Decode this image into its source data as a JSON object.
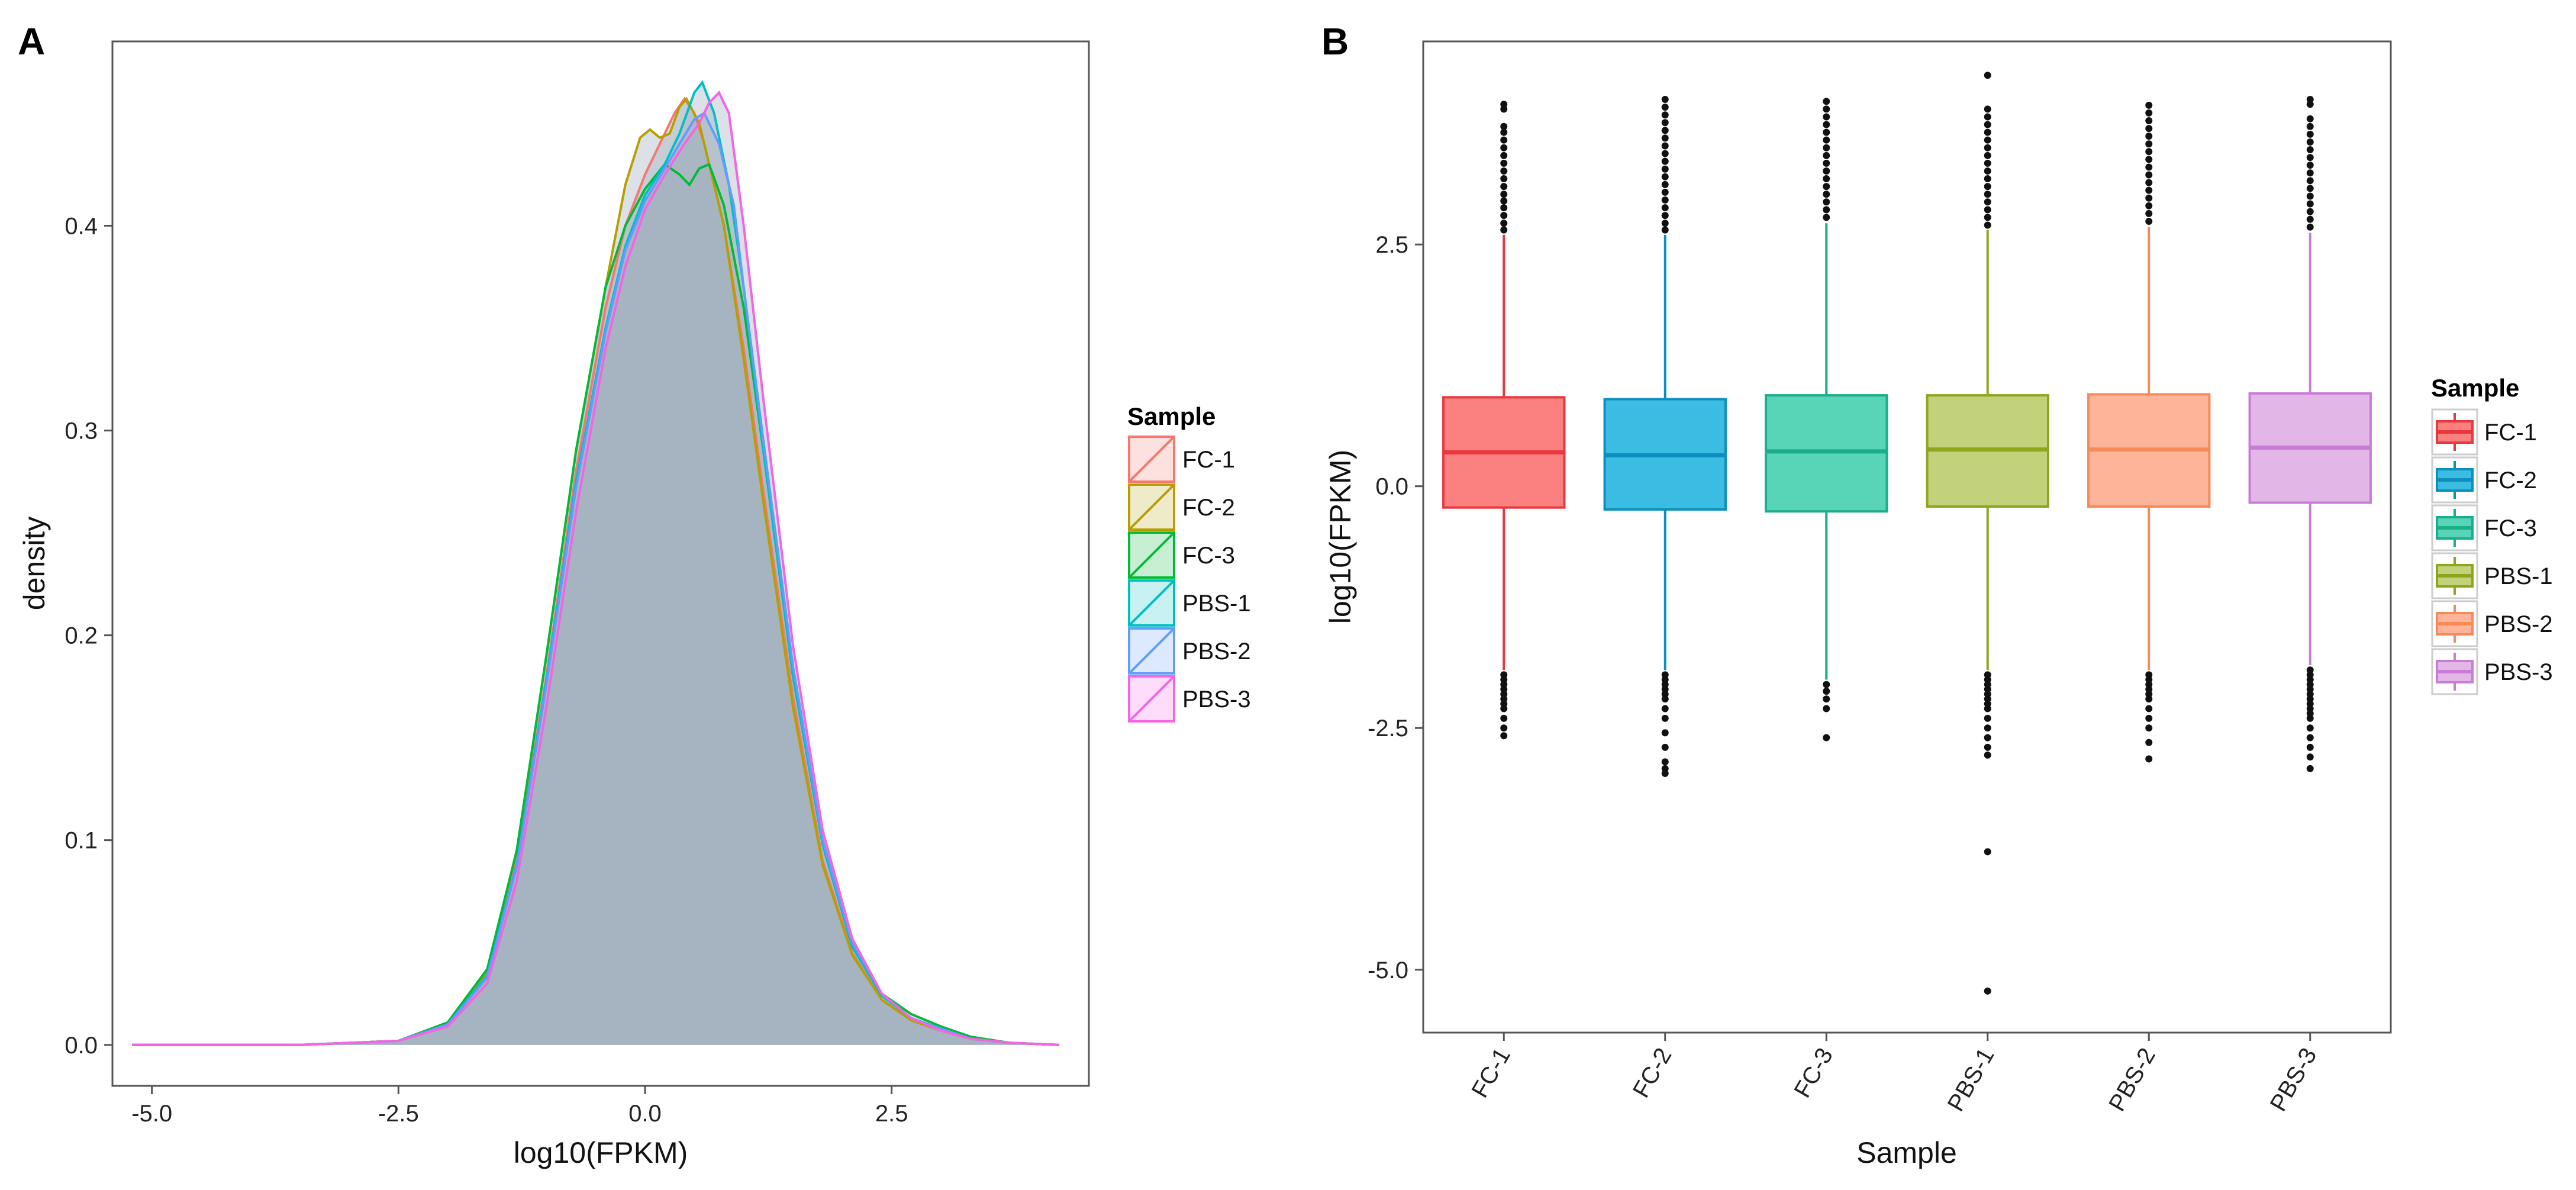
{
  "panel_a_label": "A",
  "panel_b_label": "B",
  "chart_data": [
    {
      "type": "area",
      "panel": "A",
      "title": "",
      "xlabel": "log10(FPKM)",
      "ylabel": "density",
      "xlim": [
        -5.4,
        4.5
      ],
      "ylim": [
        -0.02,
        0.49
      ],
      "xticks": [
        -5.0,
        -2.5,
        0.0,
        2.5
      ],
      "xtick_labels": [
        "-5.0",
        "-2.5",
        "0.0",
        "2.5"
      ],
      "yticks": [
        0.0,
        0.1,
        0.2,
        0.3,
        0.4
      ],
      "ytick_labels": [
        "0.0",
        "0.1",
        "0.2",
        "0.3",
        "0.4"
      ],
      "legend_title": "Sample",
      "legend_position": "right",
      "overlap_fill": "#a0afbd",
      "series": [
        {
          "name": "FC-1",
          "color": "#f8766d",
          "points": [
            [
              -5.2,
              0
            ],
            [
              -3.5,
              0
            ],
            [
              -2.5,
              0.002
            ],
            [
              -2.0,
              0.01
            ],
            [
              -1.6,
              0.035
            ],
            [
              -1.3,
              0.09
            ],
            [
              -1.0,
              0.18
            ],
            [
              -0.7,
              0.28
            ],
            [
              -0.4,
              0.36
            ],
            [
              -0.2,
              0.4
            ],
            [
              0.0,
              0.425
            ],
            [
              0.15,
              0.44
            ],
            [
              0.3,
              0.455
            ],
            [
              0.4,
              0.462
            ],
            [
              0.5,
              0.455
            ],
            [
              0.6,
              0.44
            ],
            [
              0.8,
              0.4
            ],
            [
              1.0,
              0.34
            ],
            [
              1.2,
              0.27
            ],
            [
              1.5,
              0.17
            ],
            [
              1.8,
              0.09
            ],
            [
              2.1,
              0.045
            ],
            [
              2.4,
              0.022
            ],
            [
              2.7,
              0.012
            ],
            [
              3.0,
              0.007
            ],
            [
              3.3,
              0.003
            ],
            [
              3.7,
              0.001
            ],
            [
              4.2,
              0
            ]
          ]
        },
        {
          "name": "FC-2",
          "color": "#b79f00",
          "points": [
            [
              -5.2,
              0
            ],
            [
              -3.5,
              0
            ],
            [
              -2.5,
              0.002
            ],
            [
              -2.0,
              0.01
            ],
            [
              -1.6,
              0.036
            ],
            [
              -1.3,
              0.095
            ],
            [
              -1.0,
              0.19
            ],
            [
              -0.7,
              0.29
            ],
            [
              -0.4,
              0.37
            ],
            [
              -0.2,
              0.42
            ],
            [
              -0.05,
              0.443
            ],
            [
              0.05,
              0.447
            ],
            [
              0.15,
              0.443
            ],
            [
              0.25,
              0.445
            ],
            [
              0.35,
              0.458
            ],
            [
              0.42,
              0.462
            ],
            [
              0.55,
              0.45
            ],
            [
              0.8,
              0.4
            ],
            [
              1.0,
              0.335
            ],
            [
              1.2,
              0.265
            ],
            [
              1.5,
              0.165
            ],
            [
              1.8,
              0.088
            ],
            [
              2.1,
              0.044
            ],
            [
              2.4,
              0.022
            ],
            [
              2.7,
              0.012
            ],
            [
              3.0,
              0.007
            ],
            [
              3.3,
              0.003
            ],
            [
              3.7,
              0.001
            ],
            [
              4.2,
              0
            ]
          ]
        },
        {
          "name": "FC-3",
          "color": "#00ba38",
          "points": [
            [
              -5.2,
              0
            ],
            [
              -3.5,
              0
            ],
            [
              -2.5,
              0.002
            ],
            [
              -2.0,
              0.011
            ],
            [
              -1.6,
              0.037
            ],
            [
              -1.3,
              0.095
            ],
            [
              -1.0,
              0.19
            ],
            [
              -0.7,
              0.29
            ],
            [
              -0.4,
              0.37
            ],
            [
              -0.2,
              0.4
            ],
            [
              0.0,
              0.418
            ],
            [
              0.2,
              0.43
            ],
            [
              0.35,
              0.425
            ],
            [
              0.45,
              0.42
            ],
            [
              0.55,
              0.428
            ],
            [
              0.65,
              0.43
            ],
            [
              0.8,
              0.41
            ],
            [
              1.0,
              0.36
            ],
            [
              1.2,
              0.29
            ],
            [
              1.5,
              0.18
            ],
            [
              1.8,
              0.1
            ],
            [
              2.1,
              0.05
            ],
            [
              2.4,
              0.025
            ],
            [
              2.7,
              0.015
            ],
            [
              3.0,
              0.009
            ],
            [
              3.3,
              0.004
            ],
            [
              3.7,
              0.001
            ],
            [
              4.2,
              0
            ]
          ]
        },
        {
          "name": "PBS-1",
          "color": "#00bfc4",
          "points": [
            [
              -5.2,
              0
            ],
            [
              -3.5,
              0
            ],
            [
              -2.5,
              0.002
            ],
            [
              -2.0,
              0.01
            ],
            [
              -1.6,
              0.034
            ],
            [
              -1.3,
              0.088
            ],
            [
              -1.0,
              0.178
            ],
            [
              -0.7,
              0.275
            ],
            [
              -0.4,
              0.35
            ],
            [
              -0.2,
              0.39
            ],
            [
              0.0,
              0.415
            ],
            [
              0.2,
              0.43
            ],
            [
              0.35,
              0.445
            ],
            [
              0.5,
              0.465
            ],
            [
              0.58,
              0.47
            ],
            [
              0.7,
              0.455
            ],
            [
              0.85,
              0.42
            ],
            [
              1.0,
              0.37
            ],
            [
              1.2,
              0.29
            ],
            [
              1.5,
              0.18
            ],
            [
              1.8,
              0.098
            ],
            [
              2.1,
              0.048
            ],
            [
              2.4,
              0.024
            ],
            [
              2.7,
              0.013
            ],
            [
              3.0,
              0.008
            ],
            [
              3.3,
              0.003
            ],
            [
              3.7,
              0.001
            ],
            [
              4.2,
              0
            ]
          ]
        },
        {
          "name": "PBS-2",
          "color": "#619cff",
          "points": [
            [
              -5.2,
              0
            ],
            [
              -3.5,
              0
            ],
            [
              -2.5,
              0.002
            ],
            [
              -2.0,
              0.01
            ],
            [
              -1.6,
              0.033
            ],
            [
              -1.3,
              0.087
            ],
            [
              -1.0,
              0.176
            ],
            [
              -0.7,
              0.272
            ],
            [
              -0.4,
              0.348
            ],
            [
              -0.2,
              0.388
            ],
            [
              0.0,
              0.412
            ],
            [
              0.2,
              0.428
            ],
            [
              0.35,
              0.44
            ],
            [
              0.5,
              0.452
            ],
            [
              0.6,
              0.455
            ],
            [
              0.75,
              0.44
            ],
            [
              0.9,
              0.41
            ],
            [
              1.0,
              0.37
            ],
            [
              1.2,
              0.295
            ],
            [
              1.5,
              0.185
            ],
            [
              1.8,
              0.1
            ],
            [
              2.1,
              0.05
            ],
            [
              2.4,
              0.025
            ],
            [
              2.7,
              0.013
            ],
            [
              3.0,
              0.008
            ],
            [
              3.3,
              0.003
            ],
            [
              3.7,
              0.001
            ],
            [
              4.2,
              0
            ]
          ]
        },
        {
          "name": "PBS-3",
          "color": "#f564e3",
          "points": [
            [
              -5.2,
              0
            ],
            [
              -3.5,
              0
            ],
            [
              -2.5,
              0.002
            ],
            [
              -2.0,
              0.009
            ],
            [
              -1.6,
              0.03
            ],
            [
              -1.3,
              0.08
            ],
            [
              -1.0,
              0.165
            ],
            [
              -0.7,
              0.26
            ],
            [
              -0.4,
              0.34
            ],
            [
              -0.2,
              0.38
            ],
            [
              0.0,
              0.408
            ],
            [
              0.2,
              0.425
            ],
            [
              0.4,
              0.44
            ],
            [
              0.55,
              0.45
            ],
            [
              0.65,
              0.46
            ],
            [
              0.75,
              0.465
            ],
            [
              0.85,
              0.455
            ],
            [
              1.0,
              0.4
            ],
            [
              1.2,
              0.315
            ],
            [
              1.5,
              0.195
            ],
            [
              1.8,
              0.105
            ],
            [
              2.1,
              0.052
            ],
            [
              2.4,
              0.025
            ],
            [
              2.7,
              0.013
            ],
            [
              3.0,
              0.007
            ],
            [
              3.3,
              0.003
            ],
            [
              3.7,
              0.001
            ],
            [
              4.2,
              0
            ]
          ]
        }
      ]
    },
    {
      "type": "box",
      "panel": "B",
      "title": "",
      "xlabel": "Sample",
      "ylabel": "log10(FPKM)",
      "ylim": [
        -5.65,
        4.6
      ],
      "yticks": [
        -5.0,
        -2.5,
        0.0,
        2.5
      ],
      "ytick_labels": [
        "-5.0",
        "-2.5",
        "0.0",
        "2.5"
      ],
      "categories": [
        "FC-1",
        "FC-2",
        "FC-3",
        "PBS-1",
        "PBS-2",
        "PBS-3"
      ],
      "legend_title": "Sample",
      "legend_position": "right",
      "series": [
        {
          "name": "FC-1",
          "color": "#e8383d",
          "fill": "#fb8080",
          "q1": -0.22,
          "median": 0.35,
          "q3": 0.92,
          "whisker_low": -1.9,
          "whisker_high": 2.6,
          "outliers_low": [
            -1.95,
            -2.0,
            -2.05,
            -2.1,
            -2.15,
            -2.2,
            -2.25,
            -2.3,
            -2.4,
            -2.5,
            -2.58
          ],
          "outliers_high": [
            2.65,
            2.72,
            2.8,
            2.88,
            2.95,
            3.02,
            3.1,
            3.18,
            3.26,
            3.34,
            3.42,
            3.5,
            3.58,
            3.66,
            3.72,
            3.9,
            3.95
          ]
        },
        {
          "name": "FC-2",
          "color": "#0d8fbd",
          "fill": "#3bbde3",
          "q1": -0.24,
          "median": 0.32,
          "q3": 0.9,
          "whisker_low": -1.9,
          "whisker_high": 2.6,
          "outliers_low": [
            -1.95,
            -2.0,
            -2.05,
            -2.1,
            -2.15,
            -2.2,
            -2.3,
            -2.4,
            -2.55,
            -2.7,
            -2.85,
            -2.92,
            -2.97
          ],
          "outliers_high": [
            2.65,
            2.72,
            2.8,
            2.88,
            2.96,
            3.04,
            3.12,
            3.2,
            3.28,
            3.36,
            3.44,
            3.52,
            3.6,
            3.68,
            3.76,
            3.84,
            3.92,
            4.0
          ]
        },
        {
          "name": "FC-3",
          "color": "#1aae8a",
          "fill": "#58d4b7",
          "q1": -0.26,
          "median": 0.36,
          "q3": 0.94,
          "whisker_low": -2.0,
          "whisker_high": 2.72,
          "outliers_low": [
            -2.05,
            -2.12,
            -2.2,
            -2.3,
            -2.6
          ],
          "outliers_high": [
            2.78,
            2.86,
            2.94,
            3.02,
            3.1,
            3.18,
            3.26,
            3.34,
            3.42,
            3.5,
            3.58,
            3.66,
            3.74,
            3.82,
            3.9,
            3.98
          ]
        },
        {
          "name": "PBS-1",
          "color": "#8ea51e",
          "fill": "#c2d27a",
          "q1": -0.21,
          "median": 0.38,
          "q3": 0.94,
          "whisker_low": -1.9,
          "whisker_high": 2.65,
          "outliers_low": [
            -1.95,
            -2.0,
            -2.05,
            -2.1,
            -2.15,
            -2.2,
            -2.25,
            -2.3,
            -2.4,
            -2.5,
            -2.6,
            -2.7,
            -2.78,
            -3.78,
            -5.22
          ],
          "outliers_high": [
            2.7,
            2.78,
            2.86,
            2.94,
            3.02,
            3.1,
            3.18,
            3.26,
            3.34,
            3.42,
            3.5,
            3.58,
            3.66,
            3.74,
            3.82,
            3.9,
            4.25
          ]
        },
        {
          "name": "PBS-2",
          "color": "#f58a5a",
          "fill": "#fdb498",
          "q1": -0.21,
          "median": 0.38,
          "q3": 0.95,
          "whisker_low": -1.9,
          "whisker_high": 2.68,
          "outliers_low": [
            -1.95,
            -2.0,
            -2.05,
            -2.1,
            -2.15,
            -2.2,
            -2.3,
            -2.4,
            -2.5,
            -2.65,
            -2.82
          ],
          "outliers_high": [
            2.74,
            2.82,
            2.9,
            2.98,
            3.06,
            3.14,
            3.22,
            3.3,
            3.38,
            3.46,
            3.54,
            3.62,
            3.7,
            3.78,
            3.86,
            3.94
          ]
        },
        {
          "name": "PBS-3",
          "color": "#c87dd5",
          "fill": "#e2b7e7",
          "q1": -0.17,
          "median": 0.4,
          "q3": 0.96,
          "whisker_low": -1.85,
          "whisker_high": 2.62,
          "outliers_low": [
            -1.9,
            -1.95,
            -2.0,
            -2.05,
            -2.1,
            -2.15,
            -2.2,
            -2.25,
            -2.3,
            -2.35,
            -2.4,
            -2.5,
            -2.6,
            -2.7,
            -2.8,
            -2.92
          ],
          "outliers_high": [
            2.68,
            2.76,
            2.84,
            2.92,
            3.0,
            3.08,
            3.16,
            3.24,
            3.32,
            3.4,
            3.48,
            3.56,
            3.64,
            3.72,
            3.8,
            3.95,
            4.0
          ]
        }
      ]
    }
  ]
}
